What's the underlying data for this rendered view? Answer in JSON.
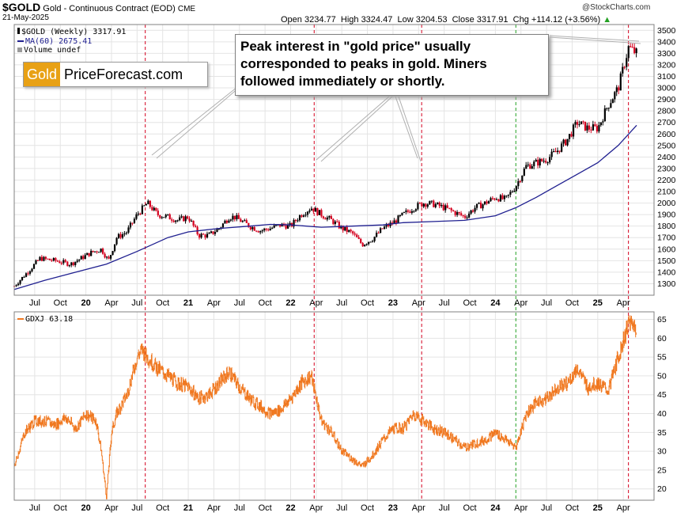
{
  "header": {
    "symbol": "$GOLD",
    "description": "Gold - Continuous Contract (EOD)",
    "exchange": "CME",
    "date": "21-May-2025",
    "open_label": "Open",
    "open": "3234.77",
    "high_label": "High",
    "high": "3324.47",
    "low_label": "Low",
    "low": "3204.53",
    "close_label": "Close",
    "close": "3317.91",
    "chg_label": "Chg",
    "chg": "+114.12 (+3.56%)",
    "credit": "@StockCharts.com"
  },
  "legend": {
    "gold": "$GOLD (Weekly) 3317.91",
    "ma": "MA(60) 2675.41",
    "volume": "Volume undef",
    "gdxj": "GDXJ 63.18"
  },
  "logo": {
    "part1": "Gold",
    "part2": "PriceForecast.com"
  },
  "callout": {
    "text": "Peak interest in \"gold price\" usually corresponded to peaks in gold. Miners followed immediately or shortly."
  },
  "colors": {
    "gold_up": "#000000",
    "gold_down": "#d4001e",
    "ma": "#202090",
    "gdxj": "#f07820",
    "red_marker": "#d4001e",
    "green_marker": "#22a022"
  },
  "chart_data": [
    {
      "type": "line",
      "title": "$GOLD (Weekly)",
      "ylim": [
        1200,
        3550
      ],
      "yticks": [
        1300,
        1400,
        1500,
        1600,
        1700,
        1800,
        1900,
        2000,
        2100,
        2200,
        2300,
        2400,
        2500,
        2600,
        2700,
        2800,
        2900,
        3000,
        3100,
        3200,
        3300,
        3400,
        3500
      ],
      "xticks": [
        "Jul",
        "Oct",
        "20",
        "Apr",
        "Jul",
        "Oct",
        "21",
        "Apr",
        "Jul",
        "Oct",
        "22",
        "Apr",
        "Jul",
        "Oct",
        "23",
        "Apr",
        "Jul",
        "Oct",
        "24",
        "Apr",
        "Jul",
        "Oct",
        "25",
        "Apr"
      ],
      "xtick_months": [
        2019.5,
        2019.75,
        2020.0,
        2020.25,
        2020.5,
        2020.75,
        2021.0,
        2021.25,
        2021.5,
        2021.75,
        2022.0,
        2022.25,
        2022.5,
        2022.75,
        2023.0,
        2023.25,
        2023.5,
        2023.75,
        2024.0,
        2024.25,
        2024.5,
        2024.75,
        2025.0,
        2025.25
      ],
      "series": [
        {
          "name": "$GOLD",
          "x": [
            2019.3,
            2019.45,
            2019.55,
            2019.7,
            2019.85,
            2019.95,
            2020.05,
            2020.15,
            2020.22,
            2020.3,
            2020.4,
            2020.5,
            2020.6,
            2020.7,
            2020.8,
            2020.9,
            2021.0,
            2021.1,
            2021.2,
            2021.3,
            2021.4,
            2021.45,
            2021.6,
            2021.7,
            2021.8,
            2021.9,
            2022.0,
            2022.1,
            2022.2,
            2022.3,
            2022.4,
            2022.5,
            2022.6,
            2022.7,
            2022.8,
            2022.9,
            2023.0,
            2023.1,
            2023.2,
            2023.3,
            2023.4,
            2023.5,
            2023.6,
            2023.7,
            2023.8,
            2023.9,
            2024.0,
            2024.1,
            2024.2,
            2024.3,
            2024.4,
            2024.5,
            2024.6,
            2024.7,
            2024.8,
            2024.9,
            2025.0,
            2025.1,
            2025.2,
            2025.3,
            2025.38
          ],
          "values": [
            1280,
            1420,
            1520,
            1500,
            1470,
            1520,
            1570,
            1600,
            1500,
            1700,
            1750,
            1900,
            2000,
            1900,
            1880,
            1850,
            1880,
            1720,
            1720,
            1780,
            1880,
            1880,
            1800,
            1760,
            1780,
            1810,
            1800,
            1900,
            1960,
            1900,
            1850,
            1780,
            1740,
            1640,
            1690,
            1780,
            1830,
            1900,
            1960,
            2000,
            1990,
            1960,
            1920,
            1880,
            1960,
            2000,
            2050,
            2030,
            2150,
            2320,
            2350,
            2380,
            2450,
            2550,
            2700,
            2650,
            2650,
            2850,
            3000,
            3350,
            3300
          ]
        },
        {
          "name": "MA(60)",
          "x": [
            2019.3,
            2019.6,
            2019.9,
            2020.2,
            2020.5,
            2020.8,
            2021.0,
            2021.3,
            2021.6,
            2021.8,
            2022.0,
            2022.3,
            2022.6,
            2022.9,
            2023.1,
            2023.4,
            2023.7,
            2024.0,
            2024.2,
            2024.4,
            2024.6,
            2024.8,
            2025.0,
            2025.2,
            2025.38
          ],
          "values": [
            1250,
            1330,
            1400,
            1470,
            1580,
            1700,
            1750,
            1780,
            1800,
            1815,
            1810,
            1790,
            1800,
            1810,
            1830,
            1840,
            1850,
            1890,
            1960,
            2050,
            2150,
            2250,
            2350,
            2500,
            2675
          ]
        }
      ]
    },
    {
      "type": "line",
      "title": "GDXJ",
      "ylim": [
        17,
        67
      ],
      "yticks": [
        20,
        25,
        30,
        35,
        40,
        45,
        50,
        55,
        60,
        65
      ],
      "xticks": [
        "Jul",
        "Oct",
        "20",
        "Apr",
        "Jul",
        "Oct",
        "21",
        "Apr",
        "Jul",
        "Oct",
        "22",
        "Apr",
        "Jul",
        "Oct",
        "23",
        "Apr",
        "Jul",
        "Oct",
        "24",
        "Apr",
        "Jul",
        "Oct",
        "25",
        "Apr"
      ],
      "series": [
        {
          "name": "GDXJ",
          "x": [
            2019.3,
            2019.4,
            2019.5,
            2019.6,
            2019.7,
            2019.8,
            2019.9,
            2020.0,
            2020.1,
            2020.15,
            2020.2,
            2020.25,
            2020.3,
            2020.4,
            2020.5,
            2020.55,
            2020.6,
            2020.7,
            2020.8,
            2020.9,
            2021.0,
            2021.1,
            2021.2,
            2021.3,
            2021.4,
            2021.5,
            2021.6,
            2021.7,
            2021.8,
            2021.9,
            2022.0,
            2022.1,
            2022.2,
            2022.3,
            2022.4,
            2022.5,
            2022.6,
            2022.7,
            2022.8,
            2022.9,
            2023.0,
            2023.1,
            2023.2,
            2023.3,
            2023.4,
            2023.5,
            2023.6,
            2023.7,
            2023.8,
            2023.9,
            2024.0,
            2024.1,
            2024.2,
            2024.3,
            2024.4,
            2024.5,
            2024.6,
            2024.7,
            2024.8,
            2024.9,
            2025.0,
            2025.1,
            2025.2,
            2025.3,
            2025.38
          ],
          "values": [
            26,
            35,
            38,
            38,
            37,
            39,
            36,
            40,
            38,
            30,
            18,
            35,
            40,
            45,
            55,
            57,
            55,
            52,
            50,
            48,
            47,
            44,
            45,
            48,
            51,
            47,
            44,
            42,
            40,
            41,
            44,
            48,
            50,
            38,
            35,
            30,
            28,
            26,
            29,
            33,
            36,
            36,
            40,
            38,
            36,
            35,
            33,
            31,
            32,
            33,
            35,
            33,
            31,
            40,
            43,
            44,
            47,
            48,
            52,
            47,
            48,
            46,
            55,
            64,
            63
          ]
        }
      ]
    }
  ]
}
